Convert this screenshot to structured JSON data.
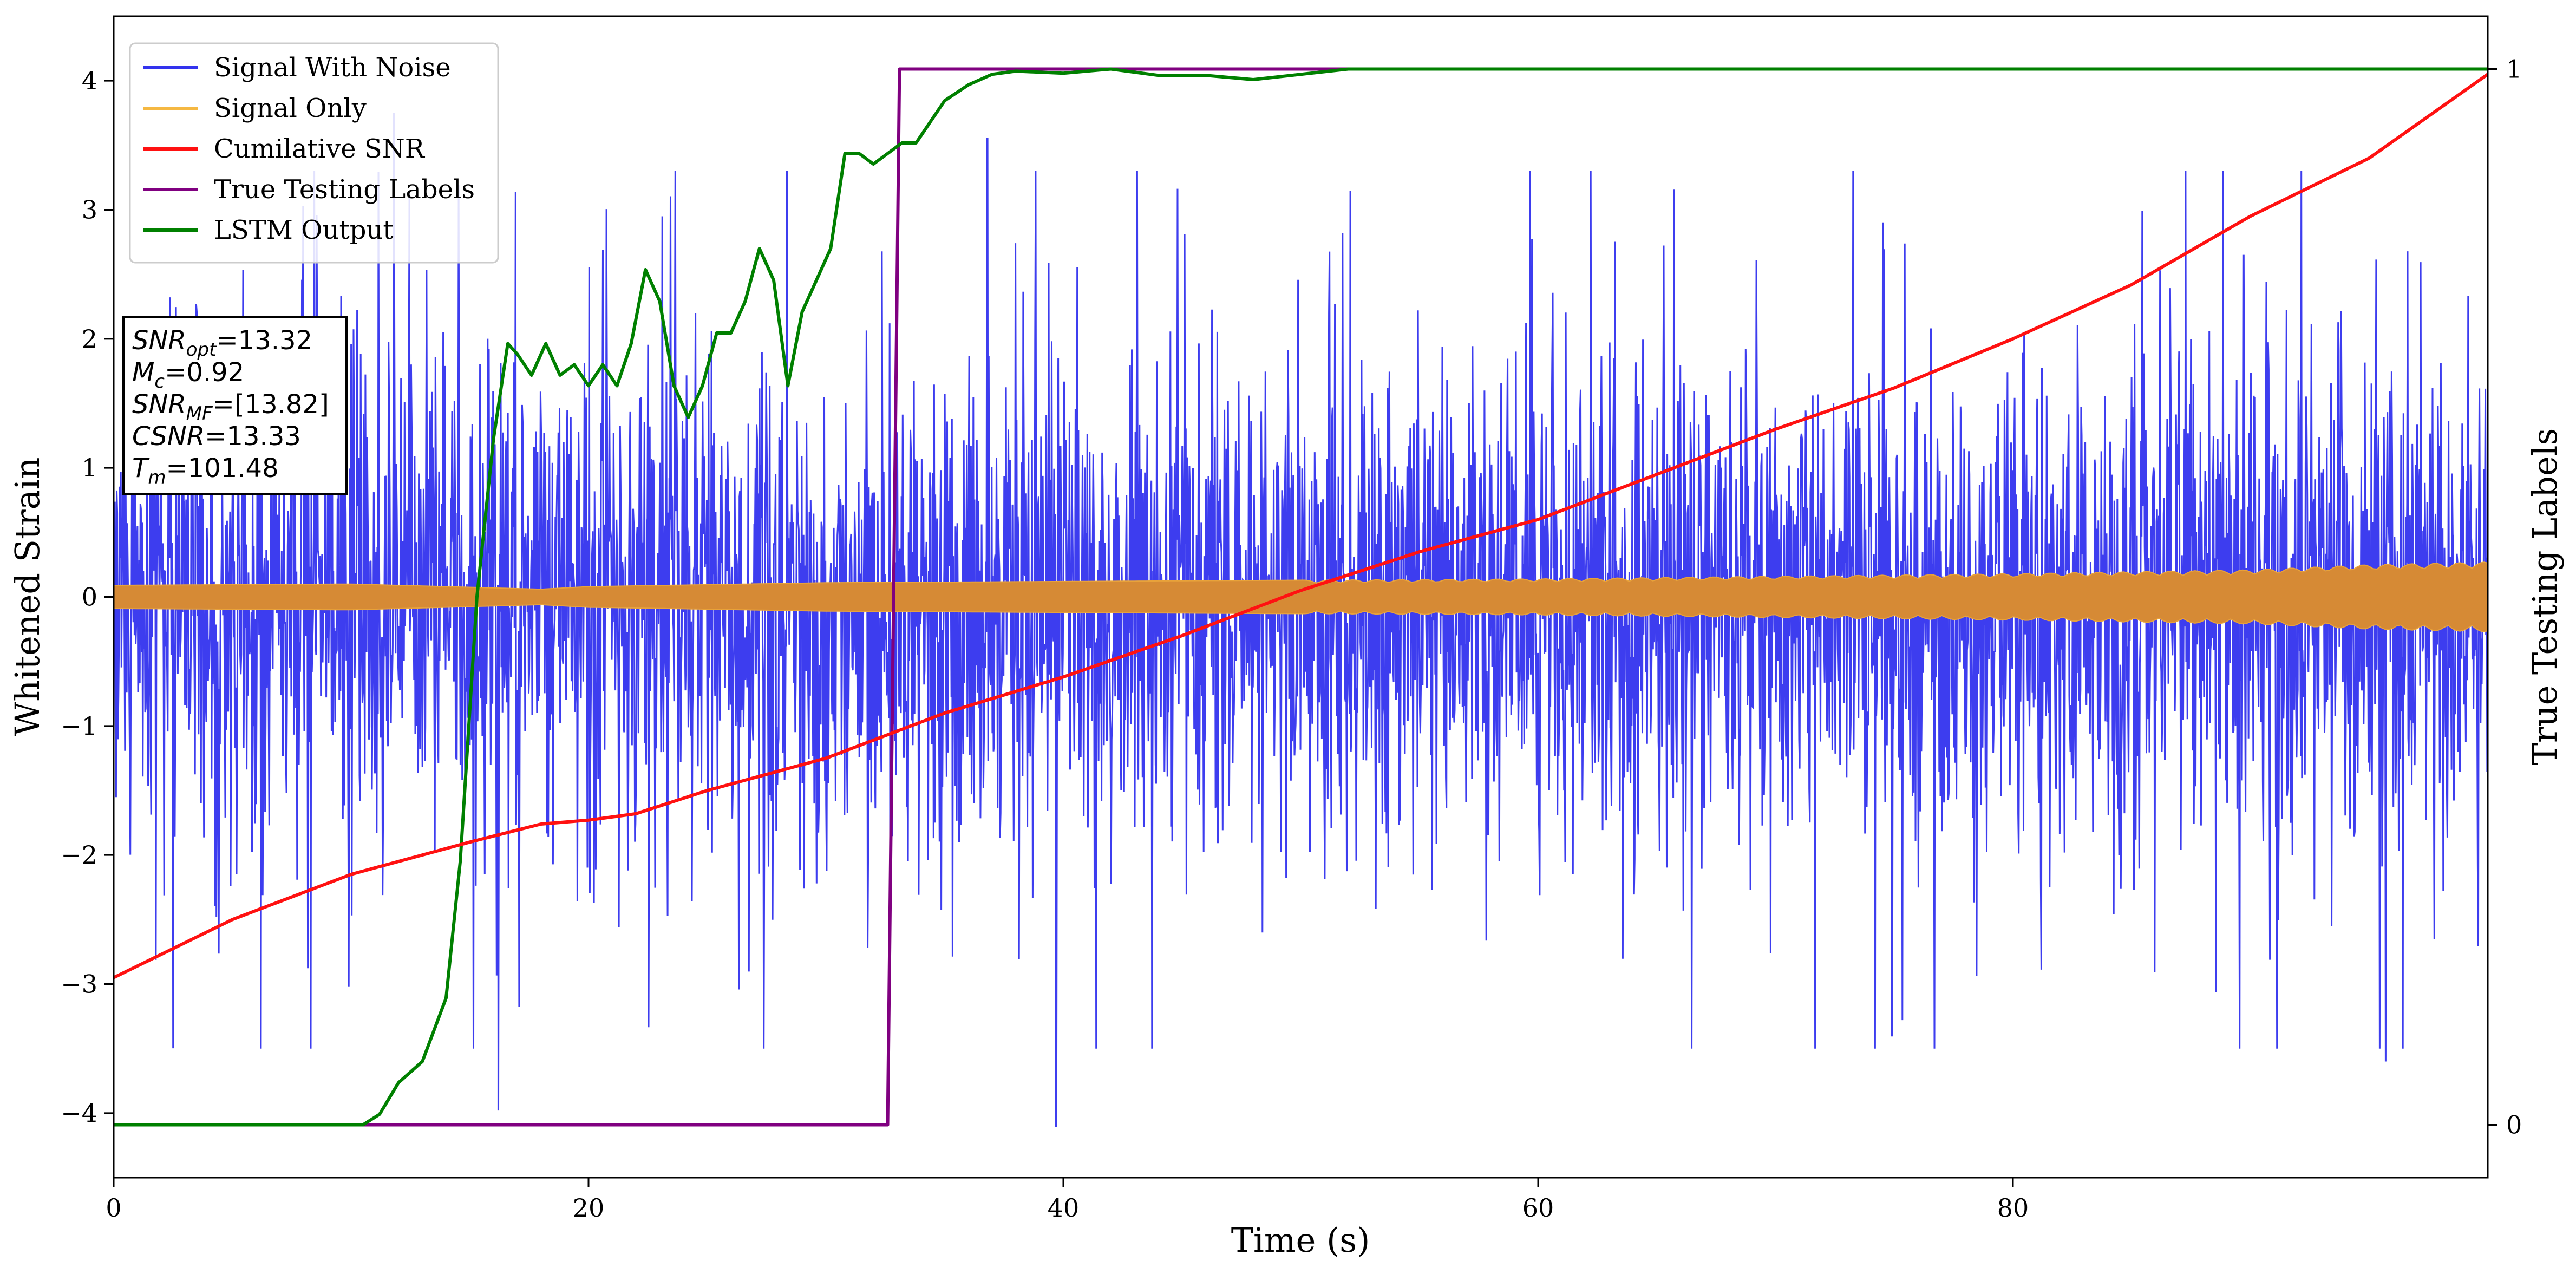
{
  "chart_data": {
    "type": "line",
    "title": "",
    "xlabel": "Time (s)",
    "ylabel": "Whitened Strain",
    "y2label": "True Testing Labels",
    "xlim": [
      0,
      100
    ],
    "ylim": [
      -4.5,
      4.5
    ],
    "y2lim": [
      -0.05,
      1.05
    ],
    "xticks": [
      0,
      20,
      40,
      60,
      80
    ],
    "yticks": [
      -4,
      -3,
      -2,
      -1,
      0,
      1,
      2,
      3,
      4
    ],
    "y2ticks": [
      0,
      1
    ],
    "grid": false,
    "legend_position": "top-left",
    "series": [
      {
        "name": "Signal With Noise",
        "axis": "left",
        "color": "#3333ee",
        "noise_band": {
          "typical": [
            -1.0,
            1.0
          ],
          "extreme": [
            -4.1,
            3.7
          ]
        },
        "notable_spikes": [
          {
            "x": 16.2,
            "y": -3.98
          },
          {
            "x": 39.7,
            "y": -4.1
          },
          {
            "x": 36.8,
            "y": 3.55
          },
          {
            "x": 11.8,
            "y": 3.75
          },
          {
            "x": 95.7,
            "y": -3.6
          },
          {
            "x": 74.9,
            "y": -3.4
          }
        ]
      },
      {
        "name": "Signal Only",
        "axis": "left",
        "color": "#f5b842",
        "envelope": {
          "x": [
            0,
            10,
            18,
            20,
            30,
            40,
            50,
            60,
            70,
            80,
            90,
            95,
            100
          ],
          "amplitude": [
            0.09,
            0.1,
            0.06,
            0.08,
            0.11,
            0.12,
            0.13,
            0.14,
            0.16,
            0.18,
            0.21,
            0.25,
            0.27
          ]
        }
      },
      {
        "name": "Cumilative SNR",
        "axis": "left",
        "color": "#ff1111",
        "x": [
          0,
          5,
          10,
          15,
          18,
          20,
          22,
          25,
          30,
          35,
          40,
          45,
          50,
          55,
          60,
          65,
          70,
          75,
          80,
          85,
          90,
          95,
          100
        ],
        "y": [
          -2.95,
          -2.5,
          -2.15,
          -1.9,
          -1.76,
          -1.73,
          -1.68,
          -1.5,
          -1.25,
          -0.9,
          -0.62,
          -0.3,
          0.05,
          0.35,
          0.6,
          0.95,
          1.3,
          1.62,
          2.0,
          2.42,
          2.95,
          3.4,
          4.05
        ]
      },
      {
        "name": "True Testing Labels",
        "axis": "right",
        "color": "#800080",
        "x": [
          0,
          32.6,
          33.1,
          100
        ],
        "y": [
          0,
          0,
          1,
          1
        ]
      },
      {
        "name": "LSTM Output",
        "axis": "right",
        "color": "#008000",
        "x": [
          0,
          10.5,
          11.2,
          12,
          13,
          14,
          14.6,
          15.3,
          16,
          16.6,
          17,
          17.6,
          18.2,
          18.8,
          19.4,
          20,
          20.6,
          21.2,
          21.8,
          22.4,
          23,
          23.6,
          24.2,
          24.8,
          25.4,
          26,
          26.6,
          27.2,
          27.8,
          28.4,
          29,
          29.6,
          30.2,
          30.8,
          31.4,
          32,
          32.6,
          33.2,
          33.8,
          34.4,
          35,
          36,
          37,
          38,
          40,
          42,
          44,
          46,
          48,
          50,
          52,
          60,
          70,
          80,
          90,
          100
        ],
        "y": [
          0,
          0,
          0.01,
          0.04,
          0.06,
          0.12,
          0.25,
          0.5,
          0.65,
          0.74,
          0.73,
          0.71,
          0.74,
          0.71,
          0.72,
          0.7,
          0.72,
          0.7,
          0.74,
          0.81,
          0.78,
          0.7,
          0.67,
          0.7,
          0.75,
          0.75,
          0.78,
          0.83,
          0.8,
          0.7,
          0.77,
          0.8,
          0.83,
          0.92,
          0.92,
          0.91,
          0.92,
          0.93,
          0.93,
          0.95,
          0.97,
          0.985,
          0.995,
          0.998,
          0.996,
          1.0,
          0.994,
          0.994,
          0.99,
          0.995,
          1.0,
          1.0,
          1.0,
          1.0,
          1.0,
          1.0
        ]
      }
    ],
    "annotation": {
      "lines": [
        {
          "base": "SNR",
          "sub": "opt",
          "value": "=13.32"
        },
        {
          "base": "M",
          "sub": "c",
          "value": "=0.92"
        },
        {
          "base": "SNR",
          "sub": "MF",
          "value": "=[13.82]"
        },
        {
          "base": "CSNR",
          "sub": "",
          "value": "=13.33"
        },
        {
          "base": "T",
          "sub": "m",
          "value": "=101.48"
        }
      ]
    }
  }
}
